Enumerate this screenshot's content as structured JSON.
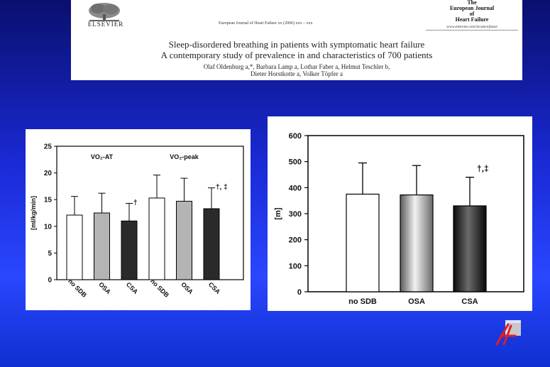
{
  "header": {
    "publisher": "ELSEVIER",
    "journal_ref": "European Journal of Heart Failure xx (2006) xxx – xxx",
    "journal_name_lines": [
      "The",
      "European Journal",
      "of",
      "Heart Failure"
    ],
    "journal_url": "www.elsevier.com/locate/ejheart",
    "title_line1": "Sleep-disordered breathing in patients with symptomatic heart failure",
    "title_line2": "A contemporary study of prevalence in and characteristics of 700 patients",
    "authors_line1": "Olaf Oldenburg a,*, Barbara Lamp a, Lothar Faber a, Helmut Teschler b,",
    "authors_line2": "Dieter Horstkotte a, Volker Töpfer a"
  },
  "chart_data": [
    {
      "type": "bar",
      "groups": [
        {
          "label": "VO₂-AT",
          "categories": [
            "no SDB",
            "OSA",
            "CSA"
          ],
          "values": [
            12.1,
            12.5,
            11.0
          ],
          "error_upper": [
            15.6,
            16.2,
            14.3
          ],
          "annotations": [
            "",
            "",
            "†"
          ]
        },
        {
          "label": "VO₂-peak",
          "categories": [
            "no SDB",
            "OSA",
            "CSA"
          ],
          "values": [
            15.3,
            14.7,
            13.3
          ],
          "error_upper": [
            19.6,
            19.0,
            17.2
          ],
          "annotations": [
            "",
            "",
            "†, ‡"
          ]
        }
      ],
      "ylabel": "[ml/kg/min]",
      "ylim": [
        0,
        25
      ],
      "yticks": [
        0,
        5,
        10,
        15,
        20,
        25
      ],
      "bar_colors": [
        "#ffffff",
        "#b4b4b4",
        "#2a2a2a"
      ]
    },
    {
      "type": "bar",
      "categories": [
        "no SDB",
        "OSA",
        "CSA"
      ],
      "values": [
        375,
        372,
        330
      ],
      "error_upper": [
        495,
        485,
        440
      ],
      "annotations": [
        "",
        "",
        "†,‡"
      ],
      "ylabel": "[m]",
      "ylim": [
        0,
        600
      ],
      "yticks": [
        0,
        100,
        200,
        300,
        400,
        500,
        600
      ],
      "bar_styles": [
        "white",
        "gray-gradient",
        "dark-gradient"
      ]
    }
  ],
  "logo_badge": {
    "icon": "ejhf-logo-icon",
    "accent": "#e02020"
  }
}
